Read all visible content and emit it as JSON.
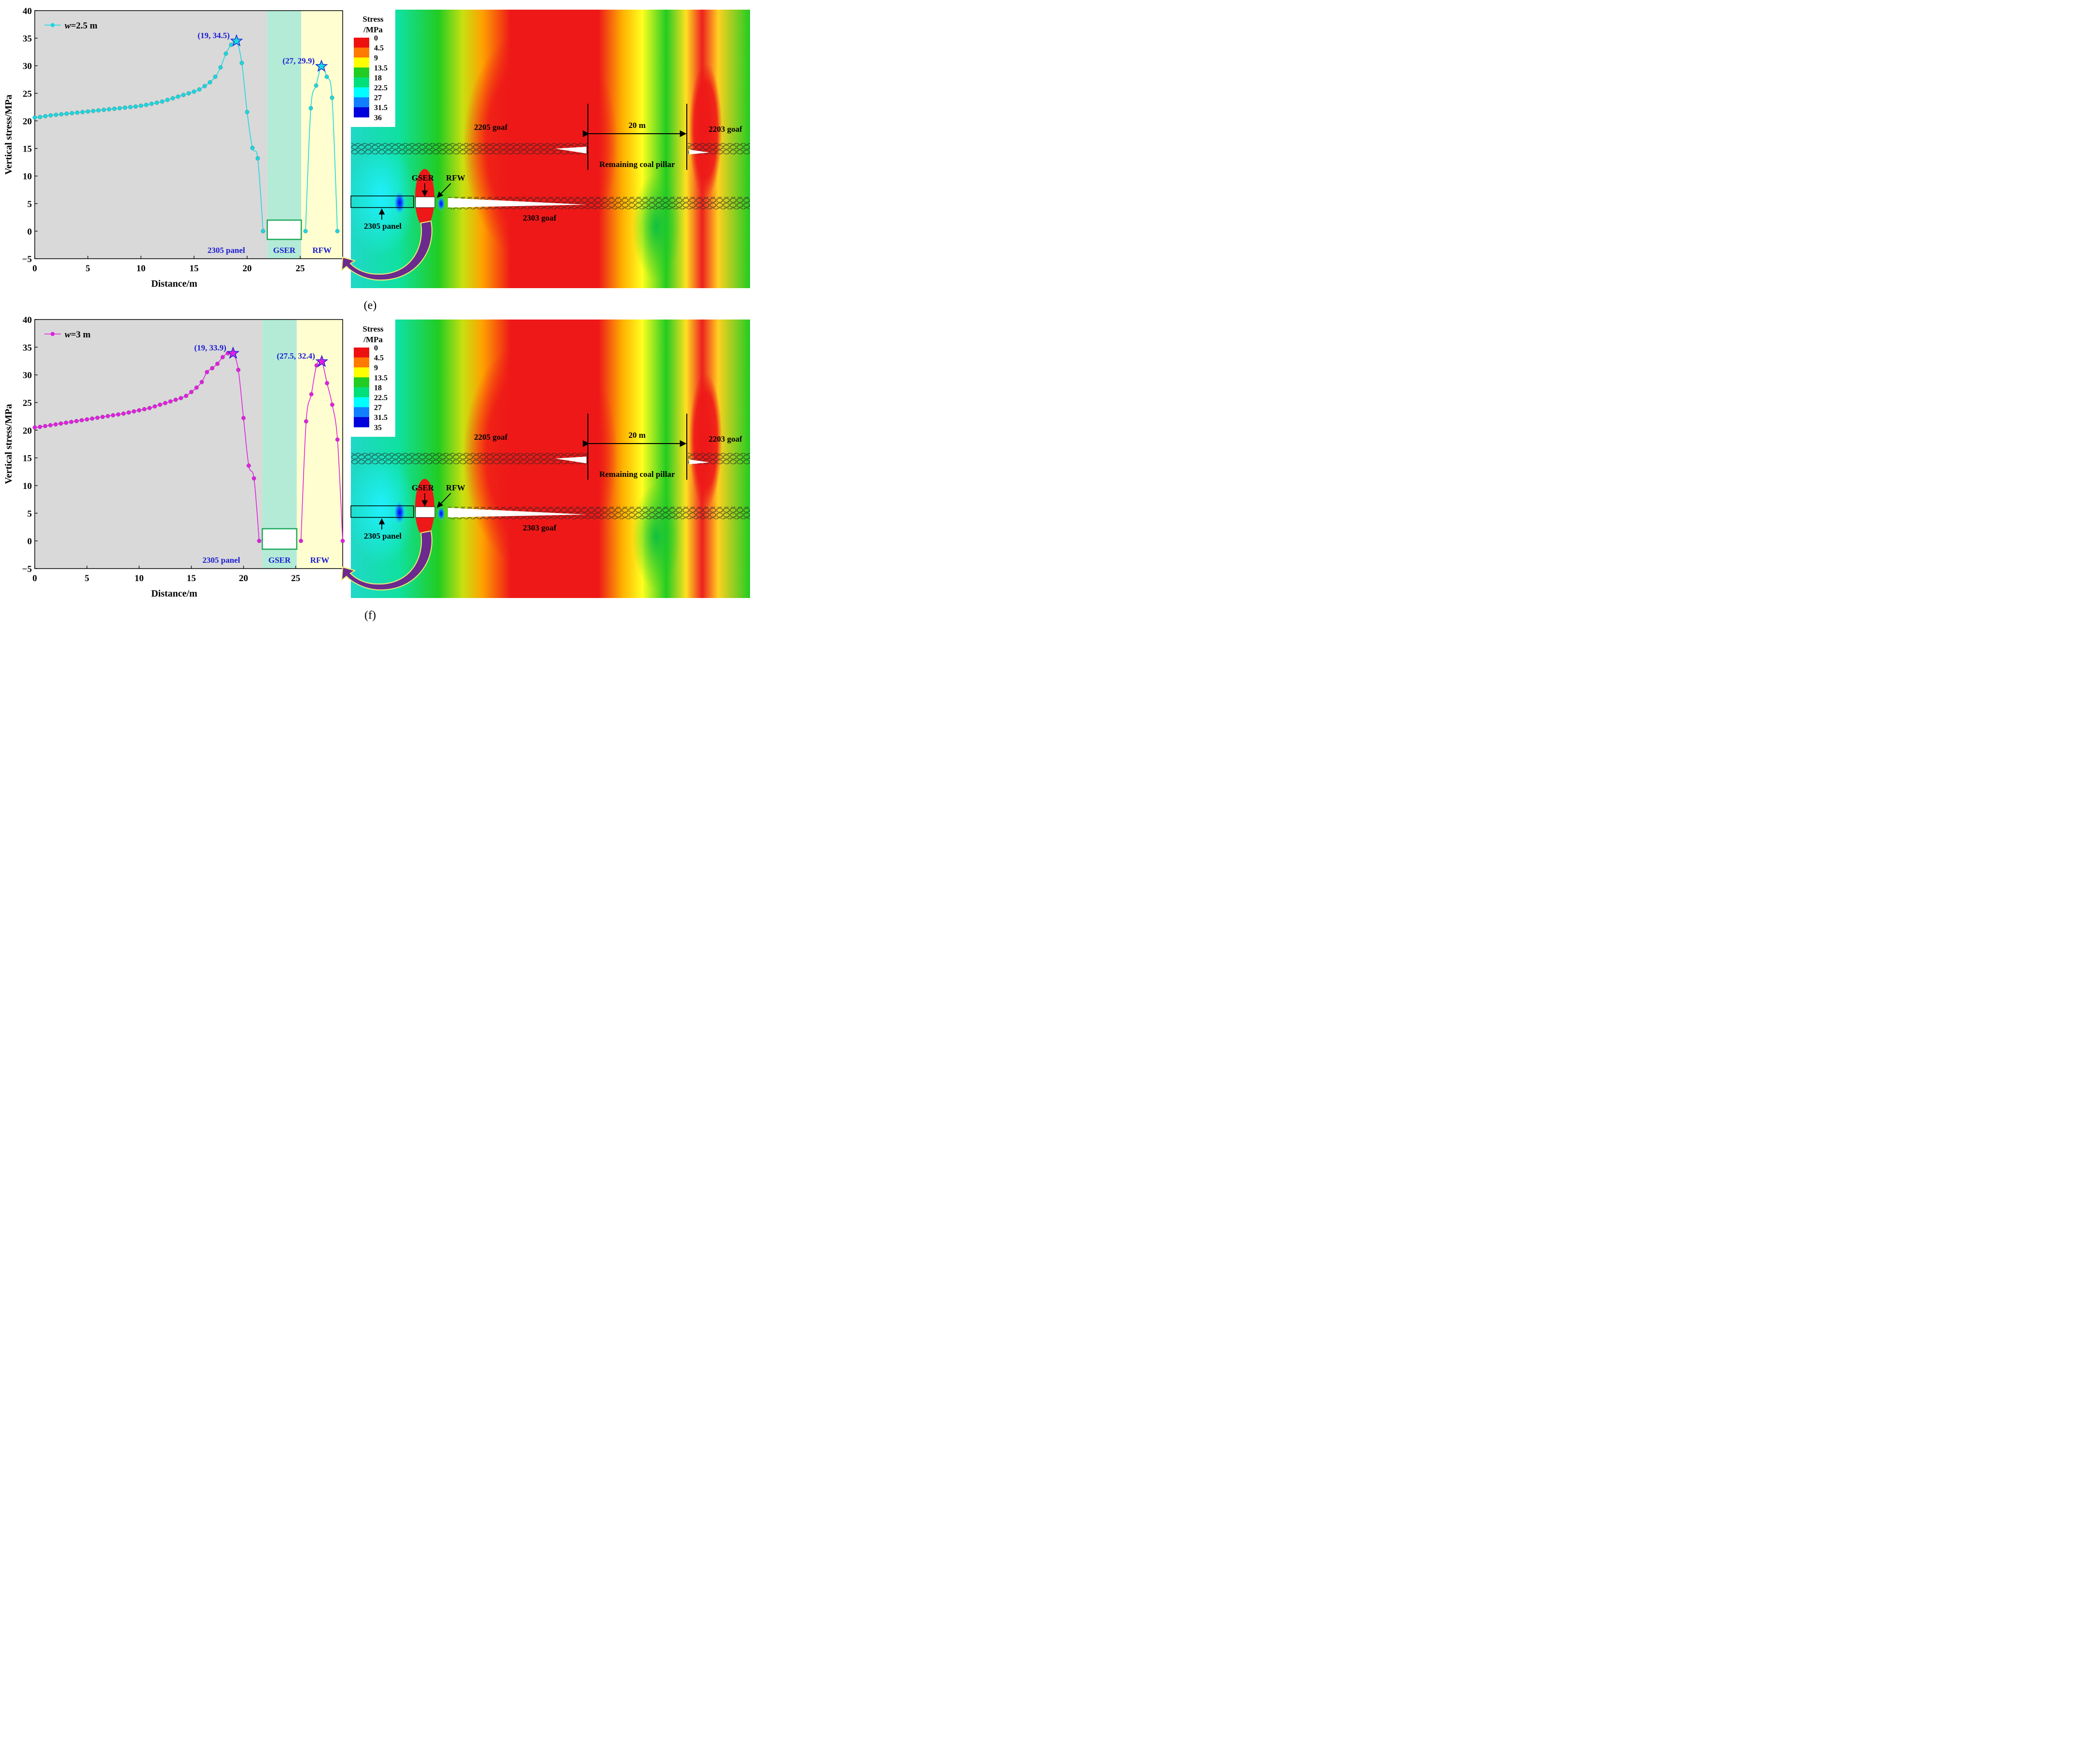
{
  "colors": {
    "gray_zone": "#d9d9d9",
    "gser_zone": "#b3ebd6",
    "rfw_zone": "#fefed0",
    "blue_text": "#1a1ad6",
    "arrow_purple": "#6b2a8e",
    "arrow_edge": "#f0f070",
    "cmap": [
      "#ee1010",
      "#ff7a00",
      "#ffff00",
      "#22cc22",
      "#00e07a",
      "#00ffff",
      "#1080ff",
      "#0000dd"
    ]
  },
  "chart_data": [
    {
      "type": "line",
      "id": "e",
      "title": "",
      "xlabel": "Distance/m",
      "ylabel": "Vertical stress/MPa",
      "xlim": [
        0,
        29
      ],
      "ylim": [
        -5,
        40
      ],
      "xticks": [
        0,
        5,
        10,
        15,
        20,
        25
      ],
      "yticks": [
        -5,
        0,
        5,
        10,
        15,
        20,
        25,
        30,
        35,
        40
      ],
      "line_color": "#18d8e0",
      "legend": {
        "prefix": "w",
        "text": "=2.5 m"
      },
      "zones": [
        {
          "name": "2305 panel",
          "from": 0,
          "to": 21.9
        },
        {
          "name": "GSER",
          "from": 21.9,
          "to": 25.1
        },
        {
          "name": "RFW",
          "from": 25.1,
          "to": 29
        }
      ],
      "roadway_box": {
        "x": [
          21.9,
          25.1
        ],
        "y": [
          -1.5,
          2
        ]
      },
      "peaks": [
        {
          "x": 19,
          "y": 34.5,
          "label": "(19, 34.5)"
        },
        {
          "x": 27,
          "y": 29.9,
          "label": "(27, 29.9)"
        }
      ],
      "segments": [
        {
          "x": [
            0,
            0.5,
            1,
            1.5,
            2,
            2.5,
            3,
            3.5,
            4,
            4.5,
            5,
            5.5,
            6,
            6.5,
            7,
            7.5,
            8,
            8.5,
            9,
            9.5,
            10,
            10.5,
            11,
            11.5,
            12,
            12.5,
            13,
            13.5,
            14,
            14.5,
            15,
            15.5,
            16,
            16.5,
            17,
            17.5,
            18,
            18.5,
            19,
            19.5,
            20,
            20.5,
            21,
            21.5
          ],
          "y": [
            20.6,
            20.7,
            20.85,
            21.0,
            21.1,
            21.2,
            21.3,
            21.4,
            21.5,
            21.6,
            21.7,
            21.8,
            21.9,
            22.0,
            22.1,
            22.2,
            22.3,
            22.4,
            22.5,
            22.6,
            22.75,
            22.9,
            23.1,
            23.3,
            23.5,
            23.8,
            24.1,
            24.4,
            24.7,
            25.0,
            25.3,
            25.7,
            26.3,
            27.0,
            28.0,
            29.7,
            32.2,
            33.8,
            34.5,
            30.5,
            21.6,
            15.1,
            13.2,
            0
          ]
        },
        {
          "x": [
            25.5,
            26.0,
            26.5,
            27.0,
            27.5,
            28.0,
            28.5
          ],
          "y": [
            0,
            22.3,
            26.4,
            29.9,
            28.0,
            24.2,
            0
          ]
        }
      ]
    },
    {
      "type": "line",
      "id": "f",
      "title": "",
      "xlabel": "Distance/m",
      "ylabel": "Vertical stress/MPa",
      "xlim": [
        0,
        29.5
      ],
      "ylim": [
        -5,
        40
      ],
      "xticks": [
        0,
        5,
        10,
        15,
        20,
        25
      ],
      "yticks": [
        -5,
        0,
        5,
        10,
        15,
        20,
        25,
        30,
        35,
        40
      ],
      "line_color": "#e020e0",
      "legend": {
        "prefix": "w",
        "text": "=3 m"
      },
      "zones": [
        {
          "name": "2305 panel",
          "from": 0,
          "to": 21.8
        },
        {
          "name": "GSER",
          "from": 21.8,
          "to": 25.1
        },
        {
          "name": "RFW",
          "from": 25.1,
          "to": 29.5
        }
      ],
      "roadway_box": {
        "x": [
          21.8,
          25.1
        ],
        "y": [
          -1.5,
          2.2
        ]
      },
      "peaks": [
        {
          "x": 19,
          "y": 33.9,
          "label": "(19, 33.9)"
        },
        {
          "x": 27.5,
          "y": 32.4,
          "label": "(27.5, 32.4)"
        }
      ],
      "segments": [
        {
          "x": [
            0,
            0.5,
            1,
            1.5,
            2,
            2.5,
            3,
            3.5,
            4,
            4.5,
            5,
            5.5,
            6,
            6.5,
            7,
            7.5,
            8,
            8.5,
            9,
            9.5,
            10,
            10.5,
            11,
            11.5,
            12,
            12.5,
            13,
            13.5,
            14,
            14.5,
            15,
            15.5,
            16,
            16.5,
            17,
            17.5,
            18,
            18.5,
            19,
            19.5,
            20,
            20.5,
            21,
            21.5
          ],
          "y": [
            20.5,
            20.6,
            20.75,
            20.9,
            21.05,
            21.2,
            21.35,
            21.5,
            21.65,
            21.8,
            21.95,
            22.1,
            22.25,
            22.4,
            22.55,
            22.7,
            22.85,
            23.0,
            23.2,
            23.4,
            23.6,
            23.8,
            24.0,
            24.3,
            24.6,
            24.9,
            25.2,
            25.5,
            25.8,
            26.2,
            26.9,
            27.7,
            28.7,
            30.5,
            31.2,
            32.0,
            33.2,
            33.9,
            33.9,
            30.9,
            22.2,
            13.6,
            11.3,
            0
          ]
        },
        {
          "x": [
            25.5,
            26.0,
            26.5,
            27.0,
            27.5,
            28.0,
            28.5,
            29.0,
            29.5
          ],
          "y": [
            0,
            21.6,
            26.5,
            31.7,
            32.4,
            28.5,
            24.6,
            18.3,
            0
          ]
        }
      ]
    }
  ],
  "contours": [
    {
      "id": "e",
      "legend_title": [
        "Stress",
        "/MPa"
      ],
      "levels": [
        "0",
        "4.5",
        "9",
        "13.5",
        "18",
        "22.5",
        "27",
        "31.5",
        "36"
      ]
    },
    {
      "id": "f",
      "legend_title": [
        "Stress",
        "/MPa"
      ],
      "levels": [
        "0",
        "4.5",
        "9",
        "13.5",
        "18",
        "22.5",
        "27",
        "31.5",
        "35"
      ]
    }
  ],
  "contour_labels": {
    "goaf_upper_left": "2205 goaf",
    "goaf_upper_right": "2203 goaf",
    "goaf_lower": "2303 goaf",
    "pillar_width": "20 m",
    "pillar": "Remaining coal pillar",
    "gser": "GSER",
    "rfw": "RFW",
    "panel": "2305 panel"
  },
  "captions": [
    "(e)",
    "(f)"
  ]
}
